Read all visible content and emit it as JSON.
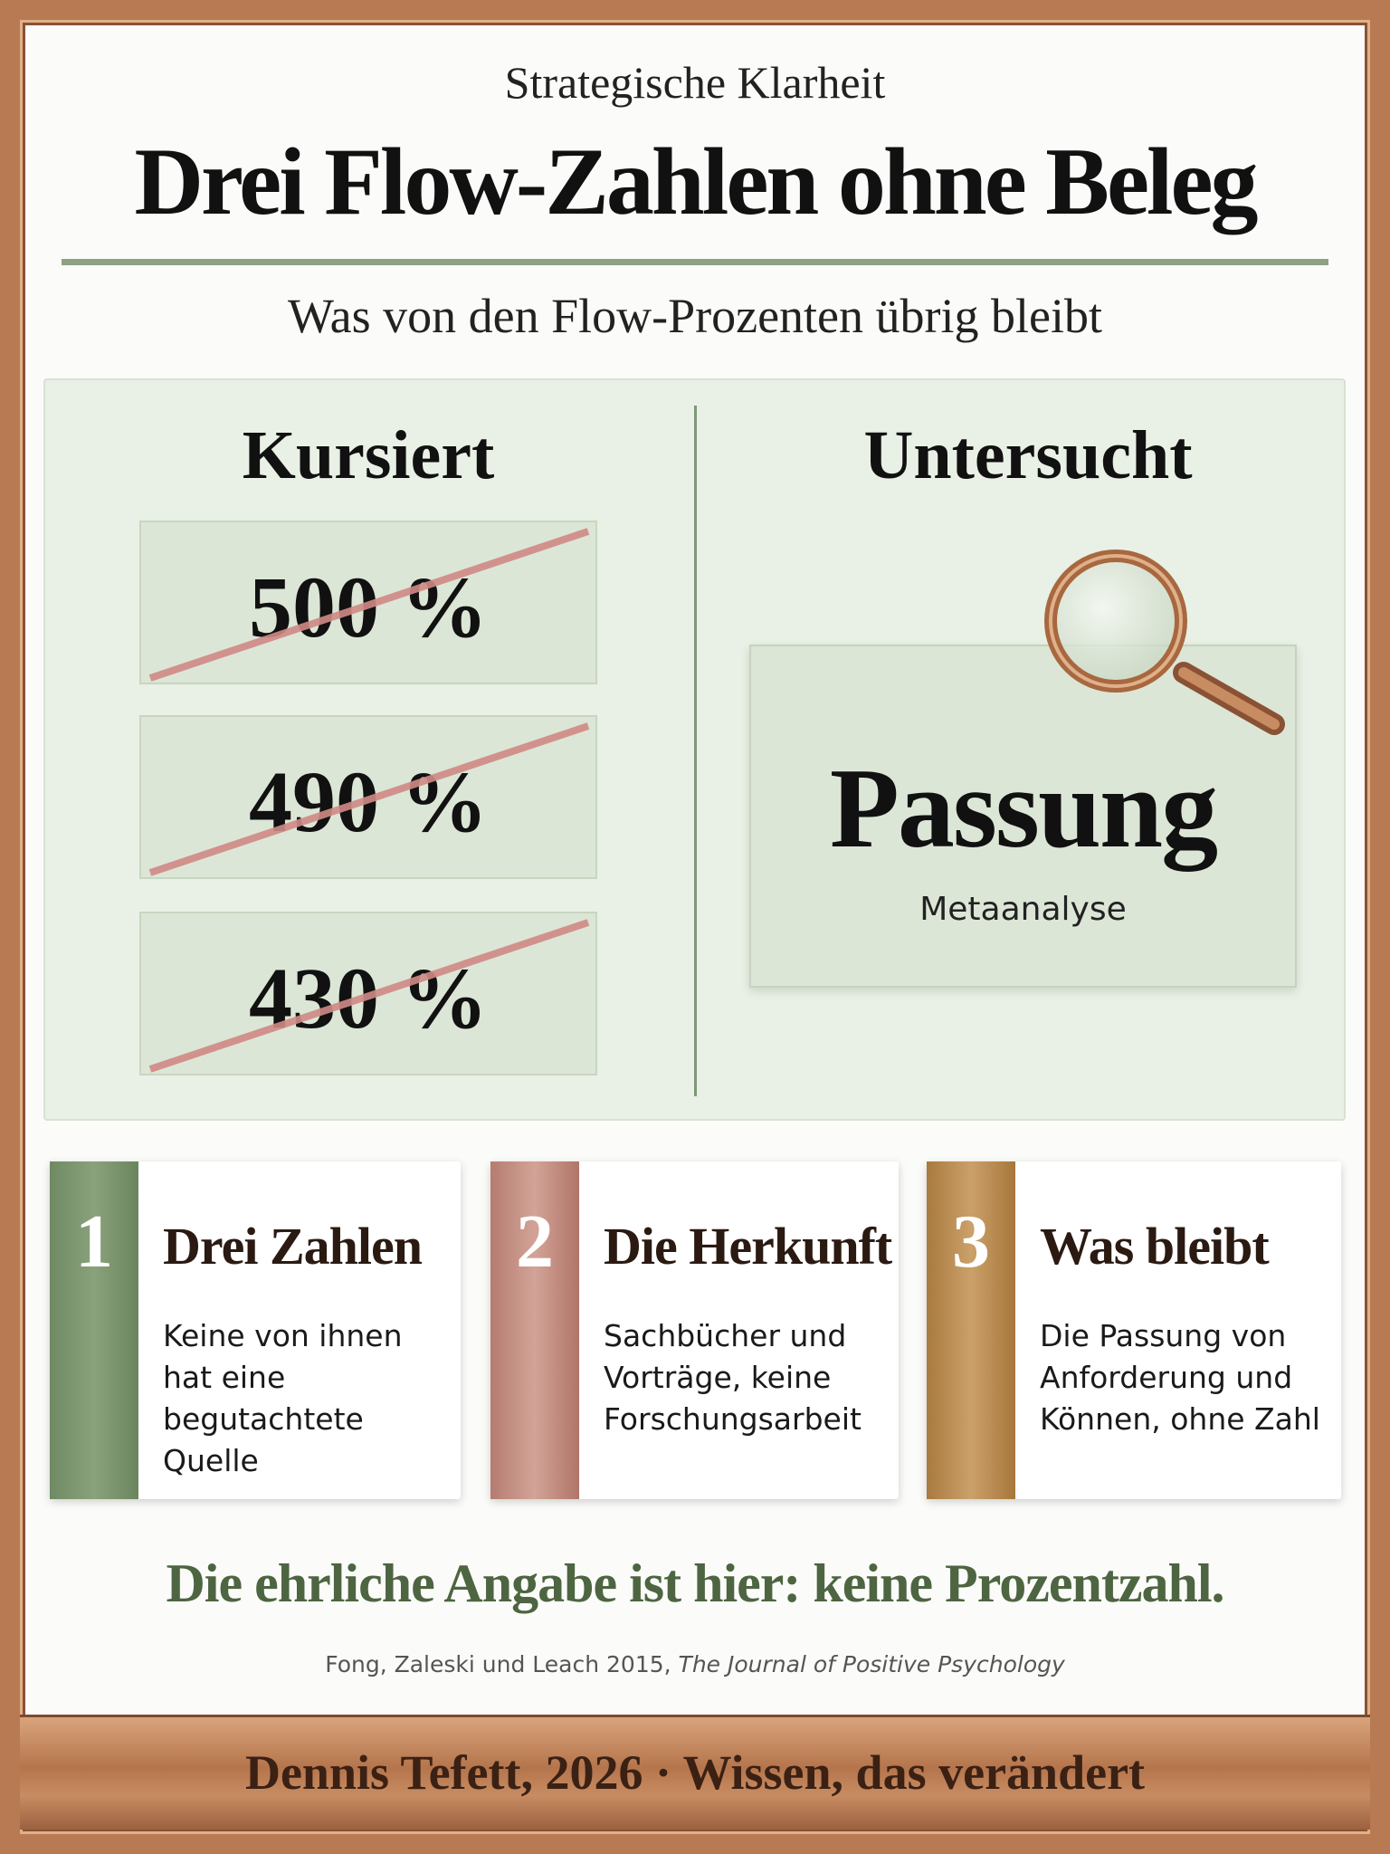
{
  "header": {
    "kicker": "Strategische Klarheit",
    "title": "Drei Flow-Zahlen ohne Beleg",
    "subtitle": "Was von den Flow-Prozenten übrig bleibt"
  },
  "comparison": {
    "left": {
      "heading": "Kursiert",
      "items": [
        "500 %",
        "490 %",
        "430 %"
      ]
    },
    "right": {
      "heading": "Untersucht",
      "label": "Passung",
      "caption": "Metaanalyse"
    }
  },
  "cards": [
    {
      "number": "1",
      "title": "Drei Zahlen",
      "text": "Keine von ihnen hat eine begutachtete Quelle"
    },
    {
      "number": "2",
      "title": "Die Herkunft",
      "text": "Sachbücher und Vorträge, keine Forschungsarbeit"
    },
    {
      "number": "3",
      "title": "Was bleibt",
      "text": "Die Passung von Anforderung und Können, ohne Zahl"
    }
  ],
  "conclusion": "Die ehrliche Angabe ist hier: keine Prozentzahl.",
  "source": {
    "authors": "Fong, Zaleski und Leach 2015,",
    "journal": "The Journal of Positive Psychology"
  },
  "footer": "Dennis Tefett, 2026 · Wissen, das verändert"
}
